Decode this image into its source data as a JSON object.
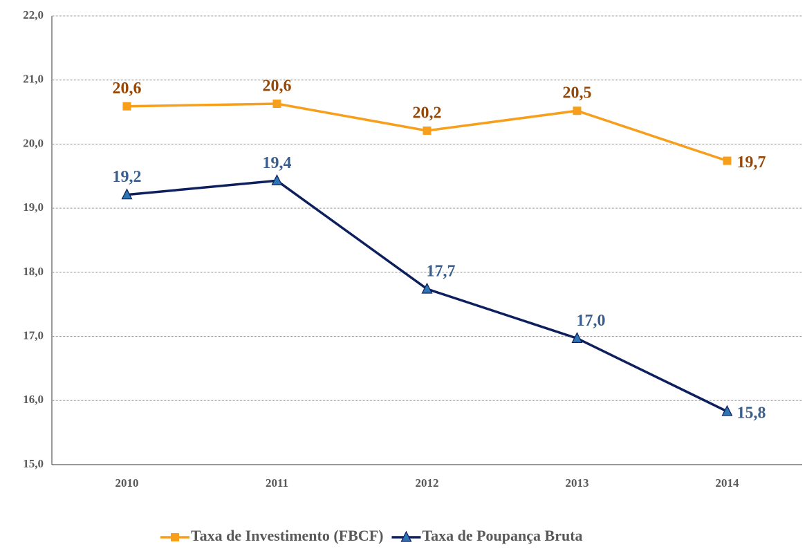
{
  "chart_data": {
    "type": "line",
    "categories": [
      "2010",
      "2011",
      "2012",
      "2013",
      "2014"
    ],
    "series": [
      {
        "name": "Taxa de Investimento (FBCF)",
        "color": "#f79e1b",
        "label_color": "#974806",
        "marker": "square",
        "values": [
          20.59,
          20.63,
          20.21,
          20.52,
          19.74
        ],
        "value_labels": [
          "20,6",
          "20,6",
          "20,2",
          "20,5",
          "19,7"
        ]
      },
      {
        "name": "Taxa de Poupança Bruta",
        "color": "#0d1f5c",
        "marker_color": "#2e75b6",
        "label_color": "#3a5f8f",
        "marker": "triangle",
        "values": [
          19.21,
          19.43,
          17.74,
          16.97,
          15.83
        ],
        "value_labels": [
          "19,2",
          "19,4",
          "17,7",
          "17,0",
          "15,8"
        ]
      }
    ],
    "ylim": [
      15,
      22
    ],
    "yticks": [
      {
        "value": 15,
        "label": "15,0"
      },
      {
        "value": 16,
        "label": "16,0"
      },
      {
        "value": 17,
        "label": "17,0"
      },
      {
        "value": 18,
        "label": "18,0"
      },
      {
        "value": 19,
        "label": "19,0"
      },
      {
        "value": 20,
        "label": "20,0"
      },
      {
        "value": 21,
        "label": "21,0"
      },
      {
        "value": 22,
        "label": "22,0"
      }
    ],
    "grid": true,
    "legend": "bottom"
  }
}
